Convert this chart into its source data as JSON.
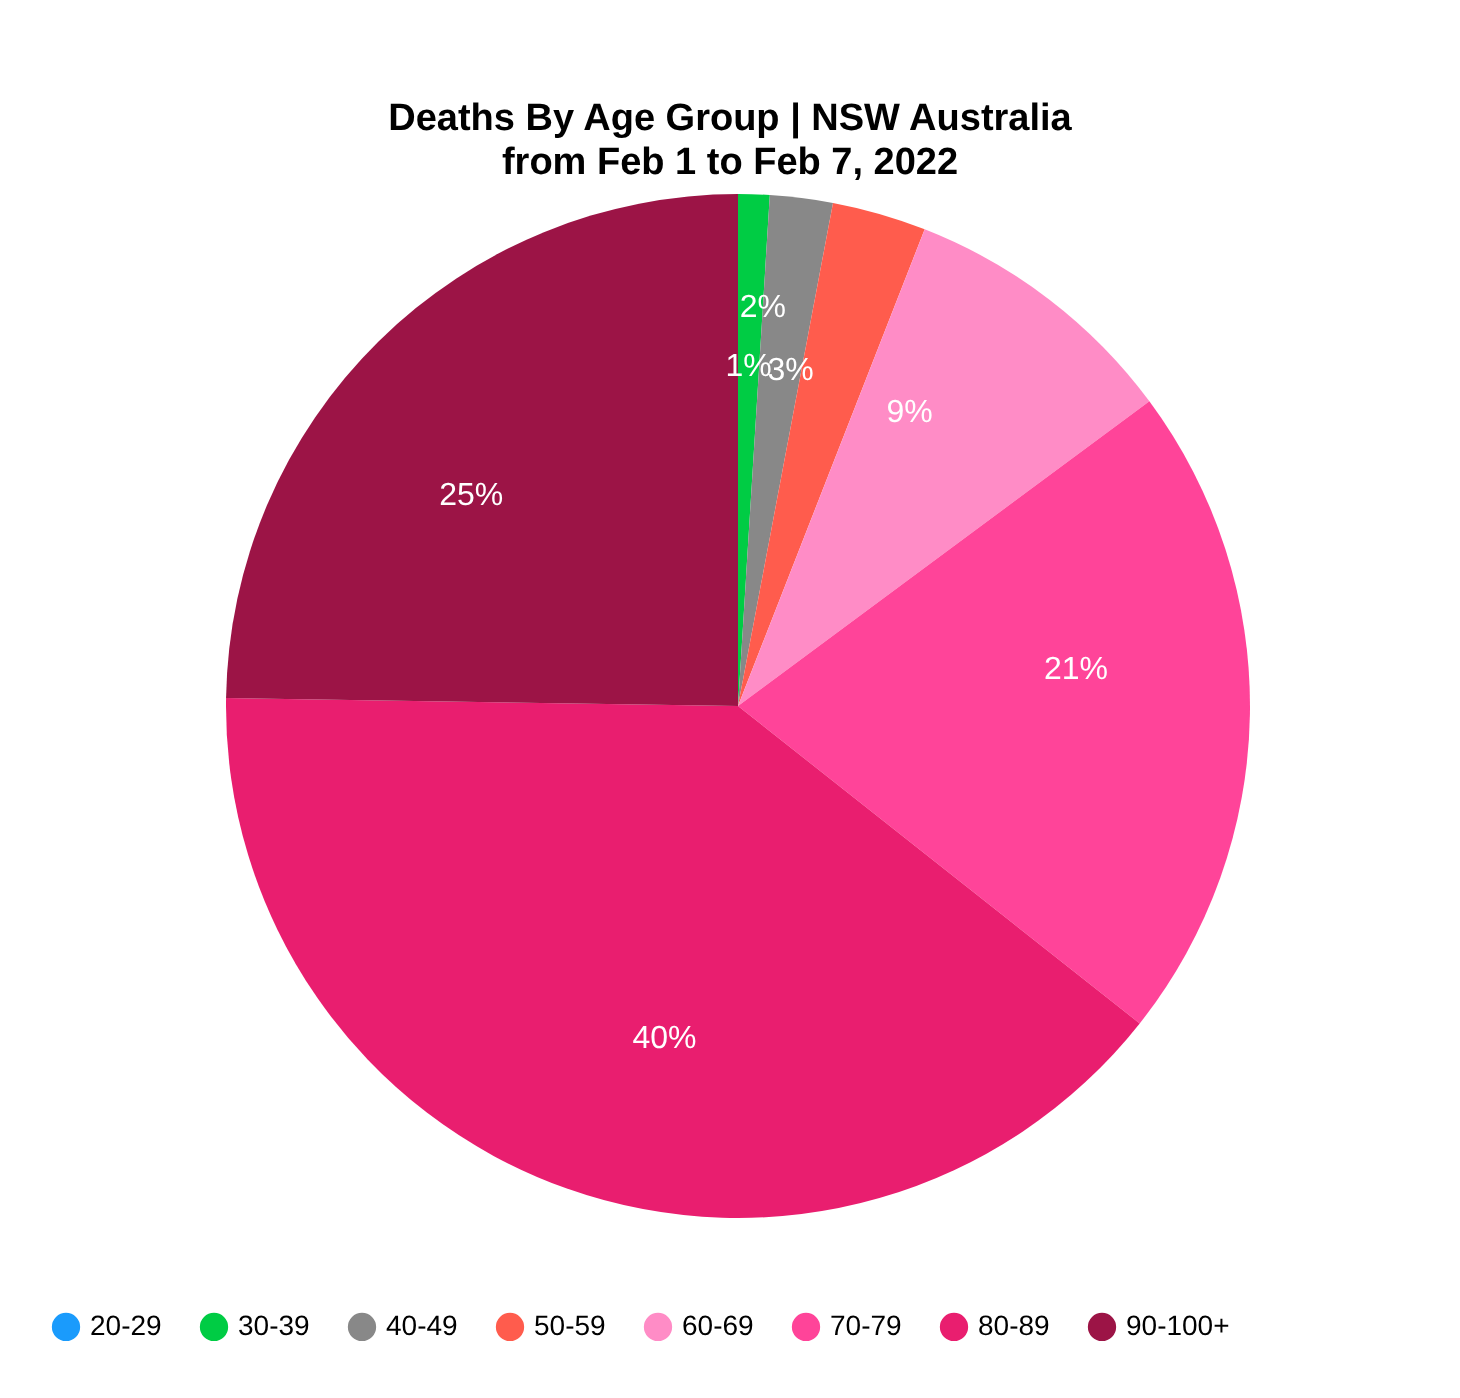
{
  "chart_data": {
    "type": "pie",
    "title": "Deaths By Age Group | NSW Australia",
    "subtitle": "from Feb 1 to Feb 7, 2022",
    "categories": [
      "20-29",
      "30-39",
      "40-49",
      "50-59",
      "60-69",
      "70-79",
      "80-89",
      "90-100+"
    ],
    "values": [
      0,
      1,
      2,
      3,
      9,
      21,
      40,
      25
    ],
    "colors": [
      "#1a9bfc",
      "#00cc44",
      "#888888",
      "#ff5c4d",
      "#ff8cc6",
      "#ff4499",
      "#e91e6f",
      "#9c1446"
    ],
    "value_labels": [
      null,
      "1%",
      "2%",
      "3%",
      "9%",
      "21%",
      "40%",
      "25%"
    ],
    "legend": "bottom"
  }
}
